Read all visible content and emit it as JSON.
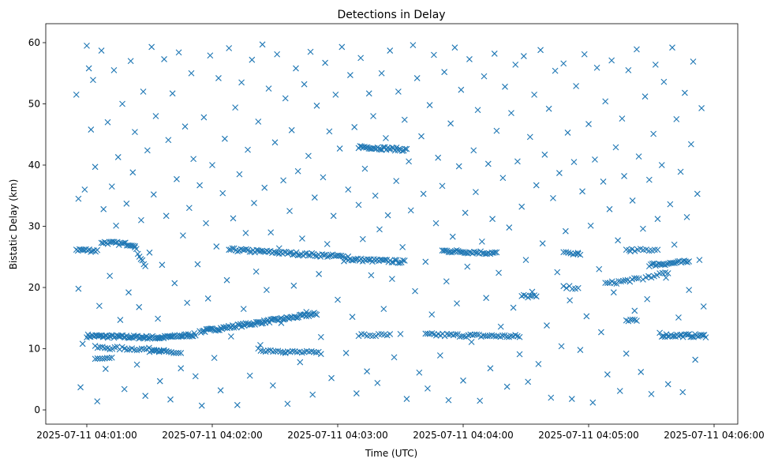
{
  "chart_data": {
    "type": "scatter",
    "title": "Detections in Delay",
    "xlabel": "Time (UTC)",
    "ylabel": "Bistatic Delay (km)",
    "x_units": "seconds after 2025-07-11 04:00:00",
    "xlim": [
      40,
      380
    ],
    "ylim": [
      -2.3,
      62.5
    ],
    "xticks": [
      60,
      120,
      180,
      240,
      300,
      360
    ],
    "xtick_labels": [
      "2025-07-11 04:01:00",
      "2025-07-11 04:02:00",
      "2025-07-11 04:03:00",
      "2025-07-11 04:04:00",
      "2025-07-11 04:05:00",
      "2025-07-11 04:06:00"
    ],
    "yticks": [
      0,
      10,
      20,
      30,
      40,
      50,
      60
    ],
    "ytick_labels": [
      "0",
      "10",
      "20",
      "30",
      "40",
      "50",
      "60"
    ],
    "marker": "x",
    "color": "#1f77b4",
    "grid": false,
    "tracks": [
      {
        "t0": 60,
        "t1": 95,
        "d0": 12.1,
        "d1": 11.8,
        "n": 60
      },
      {
        "t0": 95,
        "t1": 112,
        "d0": 11.8,
        "d1": 12.3,
        "n": 30
      },
      {
        "t0": 114,
        "t1": 170,
        "d0": 12.8,
        "d1": 15.7,
        "n": 90
      },
      {
        "t0": 55,
        "t1": 65,
        "d0": 26.2,
        "d1": 26.0,
        "n": 14
      },
      {
        "t0": 67,
        "t1": 83,
        "d0": 27.4,
        "d1": 27.0,
        "n": 22
      },
      {
        "t0": 83,
        "t1": 88,
        "d0": 26.5,
        "d1": 23.5,
        "n": 8
      },
      {
        "t0": 64,
        "t1": 98,
        "d0": 10.2,
        "d1": 9.8,
        "n": 30
      },
      {
        "t0": 90,
        "t1": 105,
        "d0": 9.6,
        "d1": 9.3,
        "n": 14
      },
      {
        "t0": 64,
        "t1": 72,
        "d0": 8.3,
        "d1": 8.3,
        "n": 8
      },
      {
        "t0": 128,
        "t1": 185,
        "d0": 26.2,
        "d1": 25.0,
        "n": 70
      },
      {
        "t0": 185,
        "t1": 212,
        "d0": 24.6,
        "d1": 24.2,
        "n": 36
      },
      {
        "t0": 142,
        "t1": 155,
        "d0": 9.8,
        "d1": 9.6,
        "n": 12
      },
      {
        "t0": 155,
        "t1": 172,
        "d0": 9.5,
        "d1": 9.3,
        "n": 16
      },
      {
        "t0": 190,
        "t1": 213,
        "d0": 43.0,
        "d1": 42.5,
        "n": 34
      },
      {
        "t0": 190,
        "t1": 205,
        "d0": 12.2,
        "d1": 12.2,
        "n": 12
      },
      {
        "t0": 222,
        "t1": 267,
        "d0": 12.3,
        "d1": 12.0,
        "n": 45
      },
      {
        "t0": 230,
        "t1": 256,
        "d0": 26.0,
        "d1": 25.6,
        "n": 35
      },
      {
        "t0": 268,
        "t1": 275,
        "d0": 18.6,
        "d1": 18.5,
        "n": 8
      },
      {
        "t0": 288,
        "t1": 295,
        "d0": 20.0,
        "d1": 20.0,
        "n": 6
      },
      {
        "t0": 288,
        "t1": 296,
        "d0": 25.6,
        "d1": 25.5,
        "n": 8
      },
      {
        "t0": 308,
        "t1": 324,
        "d0": 20.6,
        "d1": 21.4,
        "n": 16
      },
      {
        "t0": 318,
        "t1": 323,
        "d0": 14.6,
        "d1": 14.8,
        "n": 6
      },
      {
        "t0": 318,
        "t1": 333,
        "d0": 26.0,
        "d1": 26.2,
        "n": 12
      },
      {
        "t0": 329,
        "t1": 348,
        "d0": 23.7,
        "d1": 24.2,
        "n": 26
      },
      {
        "t0": 335,
        "t1": 356,
        "d0": 12.2,
        "d1": 12.1,
        "n": 30
      },
      {
        "t0": 326,
        "t1": 338,
        "d0": 21.5,
        "d1": 22.5,
        "n": 10
      }
    ],
    "points": [
      [
        55,
        51.5
      ],
      [
        56,
        34.5
      ],
      [
        57,
        3.7
      ],
      [
        58,
        10.8
      ],
      [
        56,
        19.8
      ],
      [
        59,
        36
      ],
      [
        60,
        59.5
      ],
      [
        61,
        55.8
      ],
      [
        62,
        45.8
      ],
      [
        63,
        53.9
      ],
      [
        64,
        39.7
      ],
      [
        65,
        1.4
      ],
      [
        66,
        17
      ],
      [
        67,
        58.7
      ],
      [
        68,
        32.8
      ],
      [
        69,
        6.7
      ],
      [
        70,
        47
      ],
      [
        71,
        21.9
      ],
      [
        72,
        36.5
      ],
      [
        73,
        55.5
      ],
      [
        74,
        30.1
      ],
      [
        75,
        41.3
      ],
      [
        76,
        14.7
      ],
      [
        77,
        50
      ],
      [
        78,
        3.4
      ],
      [
        79,
        33.7
      ],
      [
        80,
        19.2
      ],
      [
        81,
        57
      ],
      [
        82,
        38.8
      ],
      [
        83,
        45.4
      ],
      [
        84,
        7.4
      ],
      [
        85,
        16.8
      ],
      [
        86,
        31
      ],
      [
        87,
        52
      ],
      [
        88,
        2.3
      ],
      [
        89,
        42.4
      ],
      [
        90,
        25.7
      ],
      [
        91,
        59.3
      ],
      [
        92,
        35.2
      ],
      [
        93,
        48
      ],
      [
        94,
        14.9
      ],
      [
        95,
        4.7
      ],
      [
        96,
        23.7
      ],
      [
        97,
        57.3
      ],
      [
        98,
        31.7
      ],
      [
        99,
        44.1
      ],
      [
        100,
        1.7
      ],
      [
        101,
        51.7
      ],
      [
        102,
        20.7
      ],
      [
        103,
        37.7
      ],
      [
        104,
        58.4
      ],
      [
        105,
        6.8
      ],
      [
        106,
        28.5
      ],
      [
        107,
        46.3
      ],
      [
        108,
        17.5
      ],
      [
        109,
        33
      ],
      [
        110,
        55
      ],
      [
        111,
        41
      ],
      [
        112,
        5.5
      ],
      [
        113,
        23.8
      ],
      [
        114,
        36.7
      ],
      [
        115,
        0.7
      ],
      [
        116,
        47.8
      ],
      [
        117,
        30.5
      ],
      [
        118,
        18.2
      ],
      [
        119,
        57.9
      ],
      [
        120,
        40
      ],
      [
        121,
        8.5
      ],
      [
        122,
        26.7
      ],
      [
        123,
        54.2
      ],
      [
        124,
        3.2
      ],
      [
        125,
        35.4
      ],
      [
        126,
        44.3
      ],
      [
        127,
        21.2
      ],
      [
        128,
        59.1
      ],
      [
        129,
        12
      ],
      [
        130,
        31.3
      ],
      [
        131,
        49.4
      ],
      [
        132,
        0.8
      ],
      [
        133,
        38.5
      ],
      [
        134,
        53.5
      ],
      [
        135,
        16.5
      ],
      [
        136,
        28.9
      ],
      [
        137,
        42.5
      ],
      [
        138,
        5.6
      ],
      [
        139,
        57.2
      ],
      [
        140,
        33.8
      ],
      [
        141,
        22.6
      ],
      [
        142,
        47.1
      ],
      [
        143,
        10.6
      ],
      [
        144,
        59.7
      ],
      [
        145,
        36.3
      ],
      [
        146,
        19.6
      ],
      [
        147,
        52.5
      ],
      [
        148,
        29
      ],
      [
        149,
        4
      ],
      [
        150,
        43.7
      ],
      [
        151,
        58.1
      ],
      [
        152,
        26.4
      ],
      [
        153,
        14.2
      ],
      [
        154,
        37.5
      ],
      [
        155,
        50.9
      ],
      [
        156,
        1
      ],
      [
        157,
        32.5
      ],
      [
        158,
        45.7
      ],
      [
        159,
        20.3
      ],
      [
        160,
        55.8
      ],
      [
        161,
        39
      ],
      [
        162,
        7.8
      ],
      [
        163,
        28
      ],
      [
        164,
        53.2
      ],
      [
        165,
        16
      ],
      [
        166,
        41.5
      ],
      [
        167,
        58.5
      ],
      [
        168,
        2.5
      ],
      [
        169,
        34.7
      ],
      [
        170,
        49.7
      ],
      [
        171,
        22.2
      ],
      [
        172,
        11.9
      ],
      [
        173,
        38
      ],
      [
        174,
        56.7
      ],
      [
        175,
        27.1
      ],
      [
        176,
        45.5
      ],
      [
        177,
        5.2
      ],
      [
        178,
        31.7
      ],
      [
        179,
        51.5
      ],
      [
        180,
        18
      ],
      [
        181,
        42.7
      ],
      [
        182,
        59.3
      ],
      [
        183,
        24.3
      ],
      [
        184,
        9.3
      ],
      [
        185,
        36
      ],
      [
        186,
        54.7
      ],
      [
        187,
        15.2
      ],
      [
        188,
        46.2
      ],
      [
        189,
        2.7
      ],
      [
        190,
        33.5
      ],
      [
        191,
        57.5
      ],
      [
        192,
        27.9
      ],
      [
        193,
        39.4
      ],
      [
        194,
        6.3
      ],
      [
        195,
        51.7
      ],
      [
        196,
        22
      ],
      [
        197,
        48
      ],
      [
        198,
        35
      ],
      [
        199,
        4.4
      ],
      [
        200,
        29.5
      ],
      [
        201,
        55
      ],
      [
        202,
        16.5
      ],
      [
        203,
        44.4
      ],
      [
        204,
        31.8
      ],
      [
        205,
        58.7
      ],
      [
        206,
        21.4
      ],
      [
        207,
        8.6
      ],
      [
        208,
        37.4
      ],
      [
        209,
        52
      ],
      [
        210,
        12.4
      ],
      [
        211,
        26.6
      ],
      [
        212,
        47.4
      ],
      [
        213,
        1.8
      ],
      [
        214,
        40.6
      ],
      [
        215,
        32.6
      ],
      [
        216,
        59.6
      ],
      [
        217,
        19.4
      ],
      [
        218,
        54.2
      ],
      [
        219,
        6.1
      ],
      [
        220,
        44.7
      ],
      [
        221,
        35.3
      ],
      [
        222,
        24.2
      ],
      [
        223,
        3.5
      ],
      [
        224,
        49.8
      ],
      [
        225,
        15.6
      ],
      [
        226,
        58
      ],
      [
        227,
        30.5
      ],
      [
        228,
        41.2
      ],
      [
        229,
        8.9
      ],
      [
        230,
        36.6
      ],
      [
        231,
        55.2
      ],
      [
        232,
        21
      ],
      [
        233,
        1.6
      ],
      [
        234,
        46.8
      ],
      [
        235,
        28.3
      ],
      [
        236,
        59.2
      ],
      [
        237,
        17.4
      ],
      [
        238,
        39.8
      ],
      [
        239,
        52.3
      ],
      [
        240,
        4.8
      ],
      [
        241,
        32.2
      ],
      [
        242,
        23.4
      ],
      [
        243,
        57.3
      ],
      [
        244,
        11.1
      ],
      [
        245,
        42.4
      ],
      [
        246,
        35.6
      ],
      [
        247,
        49
      ],
      [
        248,
        1.5
      ],
      [
        249,
        27.5
      ],
      [
        250,
        54.5
      ],
      [
        251,
        18.3
      ],
      [
        252,
        40.2
      ],
      [
        253,
        6.8
      ],
      [
        254,
        31.2
      ],
      [
        255,
        58.2
      ],
      [
        256,
        45.6
      ],
      [
        257,
        22.4
      ],
      [
        258,
        13.6
      ],
      [
        259,
        37.9
      ],
      [
        260,
        52.8
      ],
      [
        261,
        3.8
      ],
      [
        262,
        29.8
      ],
      [
        263,
        48.5
      ],
      [
        264,
        16.7
      ],
      [
        265,
        56.4
      ],
      [
        266,
        40.6
      ],
      [
        267,
        9.1
      ],
      [
        268,
        33.2
      ],
      [
        269,
        57.8
      ],
      [
        270,
        24.5
      ],
      [
        271,
        4.6
      ],
      [
        272,
        44.6
      ],
      [
        273,
        19.3
      ],
      [
        274,
        51.5
      ],
      [
        275,
        36.7
      ],
      [
        276,
        7.5
      ],
      [
        277,
        58.8
      ],
      [
        278,
        27.2
      ],
      [
        279,
        41.7
      ],
      [
        280,
        13.8
      ],
      [
        281,
        49.2
      ],
      [
        282,
        2
      ],
      [
        283,
        34.6
      ],
      [
        284,
        55.4
      ],
      [
        285,
        22.5
      ],
      [
        286,
        38.7
      ],
      [
        287,
        10.4
      ],
      [
        288,
        56.6
      ],
      [
        289,
        29.2
      ],
      [
        290,
        45.3
      ],
      [
        291,
        17.9
      ],
      [
        292,
        1.8
      ],
      [
        293,
        40.5
      ],
      [
        294,
        52.9
      ],
      [
        295,
        25.5
      ],
      [
        296,
        9.8
      ],
      [
        297,
        35.7
      ],
      [
        298,
        58.1
      ],
      [
        299,
        15.3
      ],
      [
        300,
        46.7
      ],
      [
        301,
        30.1
      ],
      [
        302,
        1.2
      ],
      [
        303,
        40.9
      ],
      [
        304,
        55.9
      ],
      [
        305,
        23
      ],
      [
        306,
        12.7
      ],
      [
        307,
        37.3
      ],
      [
        308,
        50.4
      ],
      [
        309,
        5.8
      ],
      [
        310,
        32.8
      ],
      [
        311,
        57.1
      ],
      [
        312,
        19.2
      ],
      [
        313,
        42.9
      ],
      [
        314,
        27.7
      ],
      [
        315,
        3.1
      ],
      [
        316,
        47.6
      ],
      [
        317,
        38.2
      ],
      [
        318,
        9.2
      ],
      [
        319,
        55.5
      ],
      [
        320,
        25.9
      ],
      [
        321,
        34.2
      ],
      [
        322,
        16.2
      ],
      [
        323,
        58.9
      ],
      [
        324,
        41.4
      ],
      [
        325,
        6.2
      ],
      [
        326,
        29.6
      ],
      [
        327,
        51.2
      ],
      [
        328,
        18.1
      ],
      [
        329,
        37.6
      ],
      [
        330,
        2.6
      ],
      [
        331,
        45.1
      ],
      [
        332,
        56.4
      ],
      [
        333,
        31.2
      ],
      [
        334,
        12.6
      ],
      [
        335,
        40
      ],
      [
        336,
        53.6
      ],
      [
        337,
        21.6
      ],
      [
        338,
        4.2
      ],
      [
        339,
        33.6
      ],
      [
        340,
        59.2
      ],
      [
        341,
        27
      ],
      [
        342,
        47.5
      ],
      [
        343,
        15.1
      ],
      [
        344,
        38.9
      ],
      [
        345,
        2.9
      ],
      [
        346,
        51.8
      ],
      [
        347,
        31.5
      ],
      [
        348,
        19.6
      ],
      [
        349,
        43.4
      ],
      [
        350,
        56.9
      ],
      [
        351,
        8.2
      ],
      [
        352,
        35.3
      ],
      [
        353,
        24.5
      ],
      [
        354,
        49.3
      ],
      [
        355,
        16.9
      ]
    ]
  }
}
